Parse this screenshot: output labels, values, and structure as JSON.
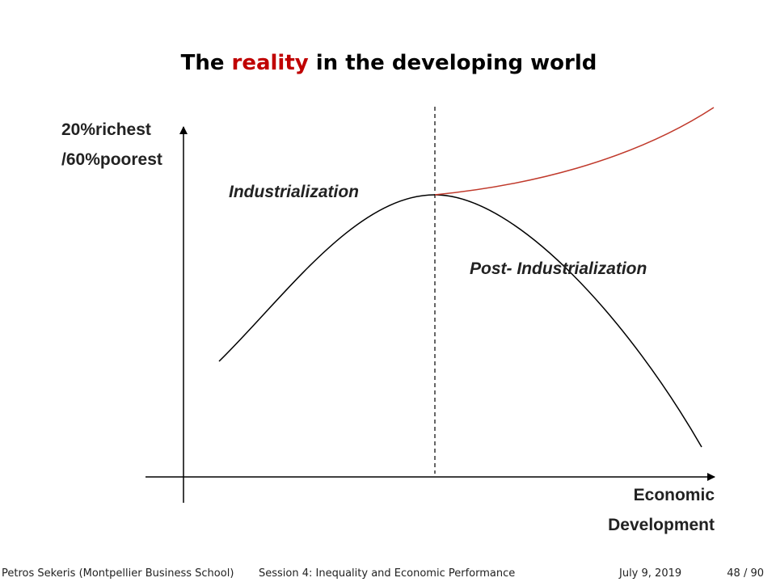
{
  "title": {
    "before": "The ",
    "highlight": "reality",
    "after": " in the developing world"
  },
  "diagram": {
    "y_axis_label": [
      "20%richest",
      "/60%poorest"
    ],
    "x_axis_label": [
      "Economic",
      "Development"
    ],
    "labels": {
      "rising": "Industrialization",
      "falling": "Post- Industrialization"
    }
  },
  "footer": {
    "author": "Petros Sekeris (Montpellier Business School)",
    "session": "Session 4: Inequality and Economic Performance",
    "date": "July 9, 2019",
    "page": "48 / 90"
  }
}
